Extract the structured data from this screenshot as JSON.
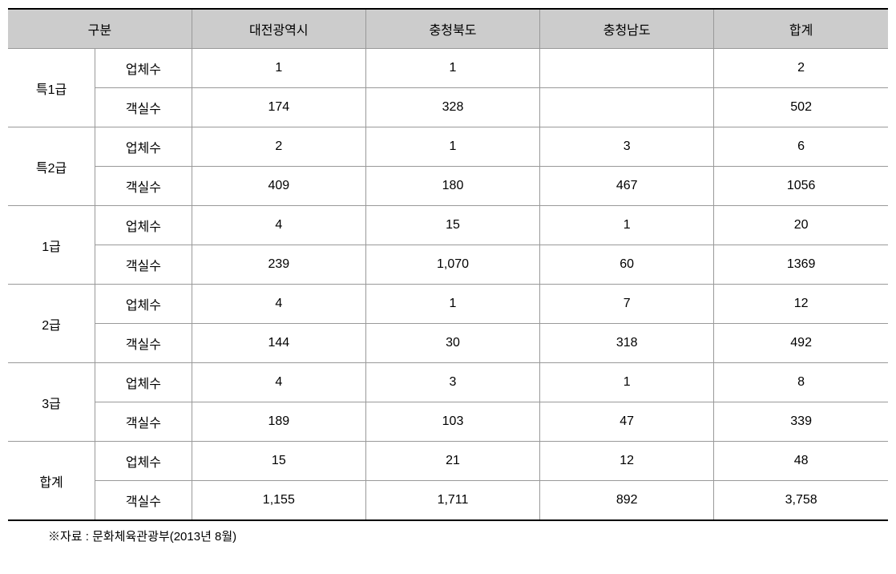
{
  "table": {
    "header_colors": {
      "background": "#cccccc",
      "border": "#999999",
      "top_border": "#000000",
      "bottom_border": "#000000",
      "text": "#000000"
    },
    "column_widths": {
      "gubun1": 90,
      "gubun2": 100,
      "region": 180
    },
    "headers": {
      "gubun": "구분",
      "col1": "대전광역시",
      "col2": "충청북도",
      "col3": "충청남도",
      "col4": "합계"
    },
    "row_labels": {
      "sub1": "업체수",
      "sub2": "객실수"
    },
    "categories": [
      {
        "name": "특1급",
        "row1": {
          "c1": "1",
          "c2": "1",
          "c3": "",
          "c4": "2"
        },
        "row2": {
          "c1": "174",
          "c2": "328",
          "c3": "",
          "c4": "502"
        }
      },
      {
        "name": "특2급",
        "row1": {
          "c1": "2",
          "c2": "1",
          "c3": "3",
          "c4": "6"
        },
        "row2": {
          "c1": "409",
          "c2": "180",
          "c3": "467",
          "c4": "1056"
        }
      },
      {
        "name": "1급",
        "row1": {
          "c1": "4",
          "c2": "15",
          "c3": "1",
          "c4": "20"
        },
        "row2": {
          "c1": "239",
          "c2": "1,070",
          "c3": "60",
          "c4": "1369"
        }
      },
      {
        "name": "2급",
        "row1": {
          "c1": "4",
          "c2": "1",
          "c3": "7",
          "c4": "12"
        },
        "row2": {
          "c1": "144",
          "c2": "30",
          "c3": "318",
          "c4": "492"
        }
      },
      {
        "name": "3급",
        "row1": {
          "c1": "4",
          "c2": "3",
          "c3": "1",
          "c4": "8"
        },
        "row2": {
          "c1": "189",
          "c2": "103",
          "c3": "47",
          "c4": "339"
        }
      },
      {
        "name": "합계",
        "row1": {
          "c1": "15",
          "c2": "21",
          "c3": "12",
          "c4": "48"
        },
        "row2": {
          "c1": "1,155",
          "c2": "1,711",
          "c3": "892",
          "c4": "3,758"
        }
      }
    ],
    "footnote": "※자료 : 문화체육관광부(2013년 8월)"
  }
}
